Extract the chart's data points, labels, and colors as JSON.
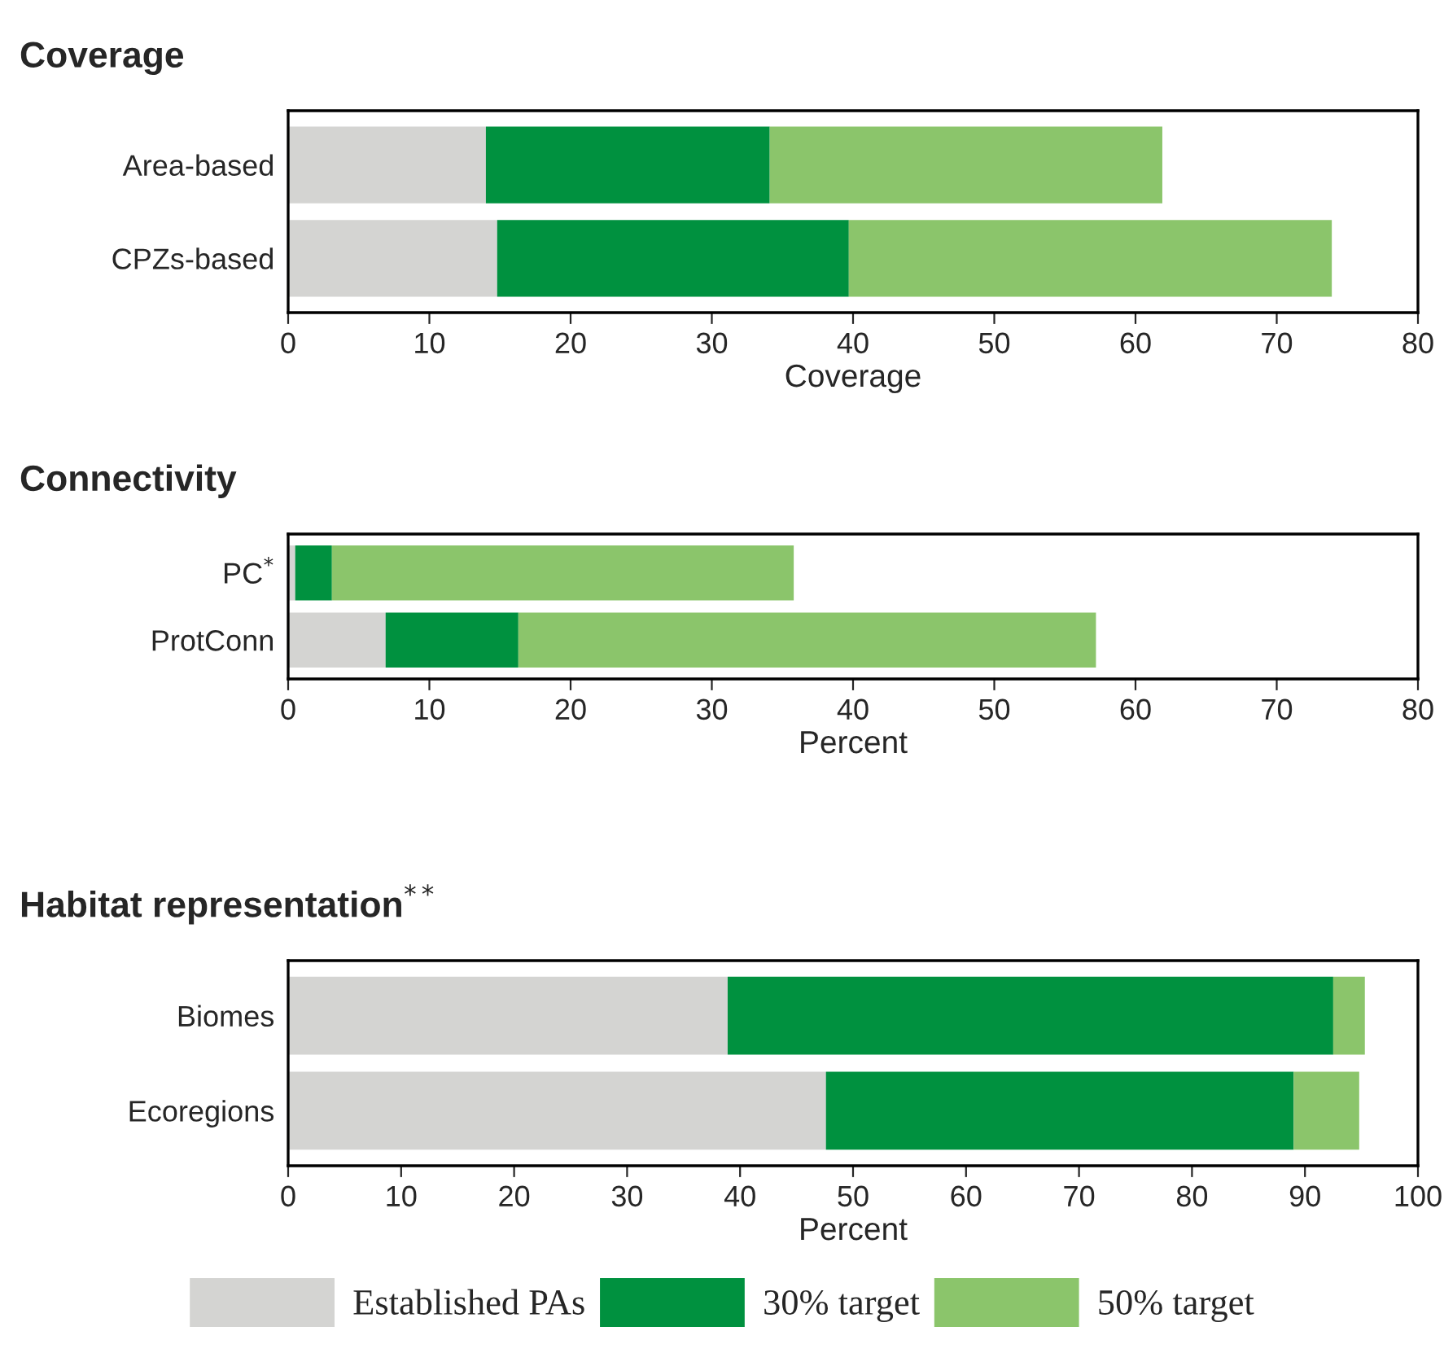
{
  "chart_data": [
    {
      "type": "bar",
      "orientation": "horizontal",
      "stacked": true,
      "title": "Coverage",
      "xlabel": "Coverage",
      "categories": [
        "Area-based",
        "CPZs-based"
      ],
      "xlim": [
        0,
        80
      ],
      "xticks": [
        0,
        10,
        20,
        30,
        40,
        50,
        60,
        70,
        80
      ],
      "grid": false,
      "legend": false,
      "series": [
        {
          "color": "#d4d4d2",
          "values": [
            14.0,
            14.8
          ]
        },
        {
          "color": "#00913f",
          "values": [
            20.1,
            24.9
          ]
        },
        {
          "color": "#8bc56b",
          "values": [
            27.8,
            34.2
          ]
        }
      ]
    },
    {
      "type": "bar",
      "orientation": "horizontal",
      "stacked": true,
      "title": "Connectivity",
      "xlabel": "Percent",
      "categories": [
        "PC$^{*}$",
        "ProtConn"
      ],
      "xlim": [
        0,
        80
      ],
      "xticks": [
        0,
        10,
        20,
        30,
        40,
        50,
        60,
        70,
        80
      ],
      "grid": false,
      "legend": false,
      "series": [
        {
          "color": "#d4d4d2",
          "values": [
            0.5,
            6.9
          ]
        },
        {
          "color": "#00913f",
          "values": [
            2.6,
            9.4
          ]
        },
        {
          "color": "#8bc56b",
          "values": [
            32.7,
            40.9
          ]
        }
      ]
    },
    {
      "type": "bar",
      "orientation": "horizontal",
      "stacked": true,
      "title": "Habitat representation$^{**}$",
      "xlabel": "Percent",
      "categories": [
        "Biomes",
        "Ecoregions"
      ],
      "xlim": [
        0,
        100
      ],
      "xticks": [
        0,
        10,
        20,
        30,
        40,
        50,
        60,
        70,
        80,
        90,
        100
      ],
      "grid": false,
      "legend": "bottom",
      "series": [
        {
          "name": "Established PAs",
          "color": "#d4d4d2",
          "values": [
            38.9,
            47.6
          ]
        },
        {
          "name": "30% target",
          "color": "#00913f",
          "values": [
            53.6,
            41.4
          ]
        },
        {
          "name": "50% target",
          "color": "#8bc56b",
          "values": [
            2.8,
            5.8
          ]
        }
      ]
    }
  ]
}
